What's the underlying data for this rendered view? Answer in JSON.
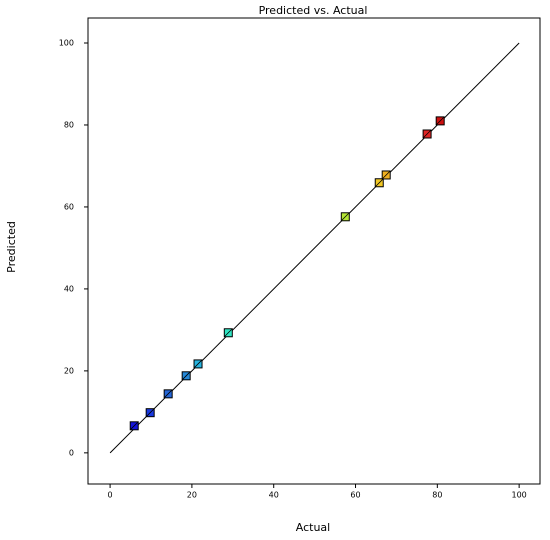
{
  "chart_data": {
    "type": "scatter",
    "title": "Predicted vs. Actual",
    "x_label": "Actual",
    "y_label": "Predicted",
    "x": [
      5.9,
      9.8,
      14.2,
      18.6,
      21.5,
      28.9,
      57.5,
      65.8,
      67.5,
      77.5,
      80.7
    ],
    "values": [
      6.6,
      9.8,
      14.4,
      18.8,
      21.7,
      29.3,
      57.6,
      65.9,
      67.8,
      77.8,
      81.0
    ],
    "colors": [
      "#1414d8",
      "#1838e0",
      "#2466d8",
      "#2488d8",
      "#26b4e0",
      "#30e6c4",
      "#b4e634",
      "#f2c824",
      "#f0b020",
      "#e02424",
      "#cc1010"
    ],
    "reference_line": [
      0,
      100
    ],
    "xlim": [
      -5.4,
      105.1
    ],
    "ylim": [
      -7.6,
      106.1
    ],
    "xticks": [
      0,
      20,
      40,
      60,
      80,
      100
    ],
    "yticks": [
      0,
      20,
      40,
      60,
      80,
      100
    ]
  }
}
